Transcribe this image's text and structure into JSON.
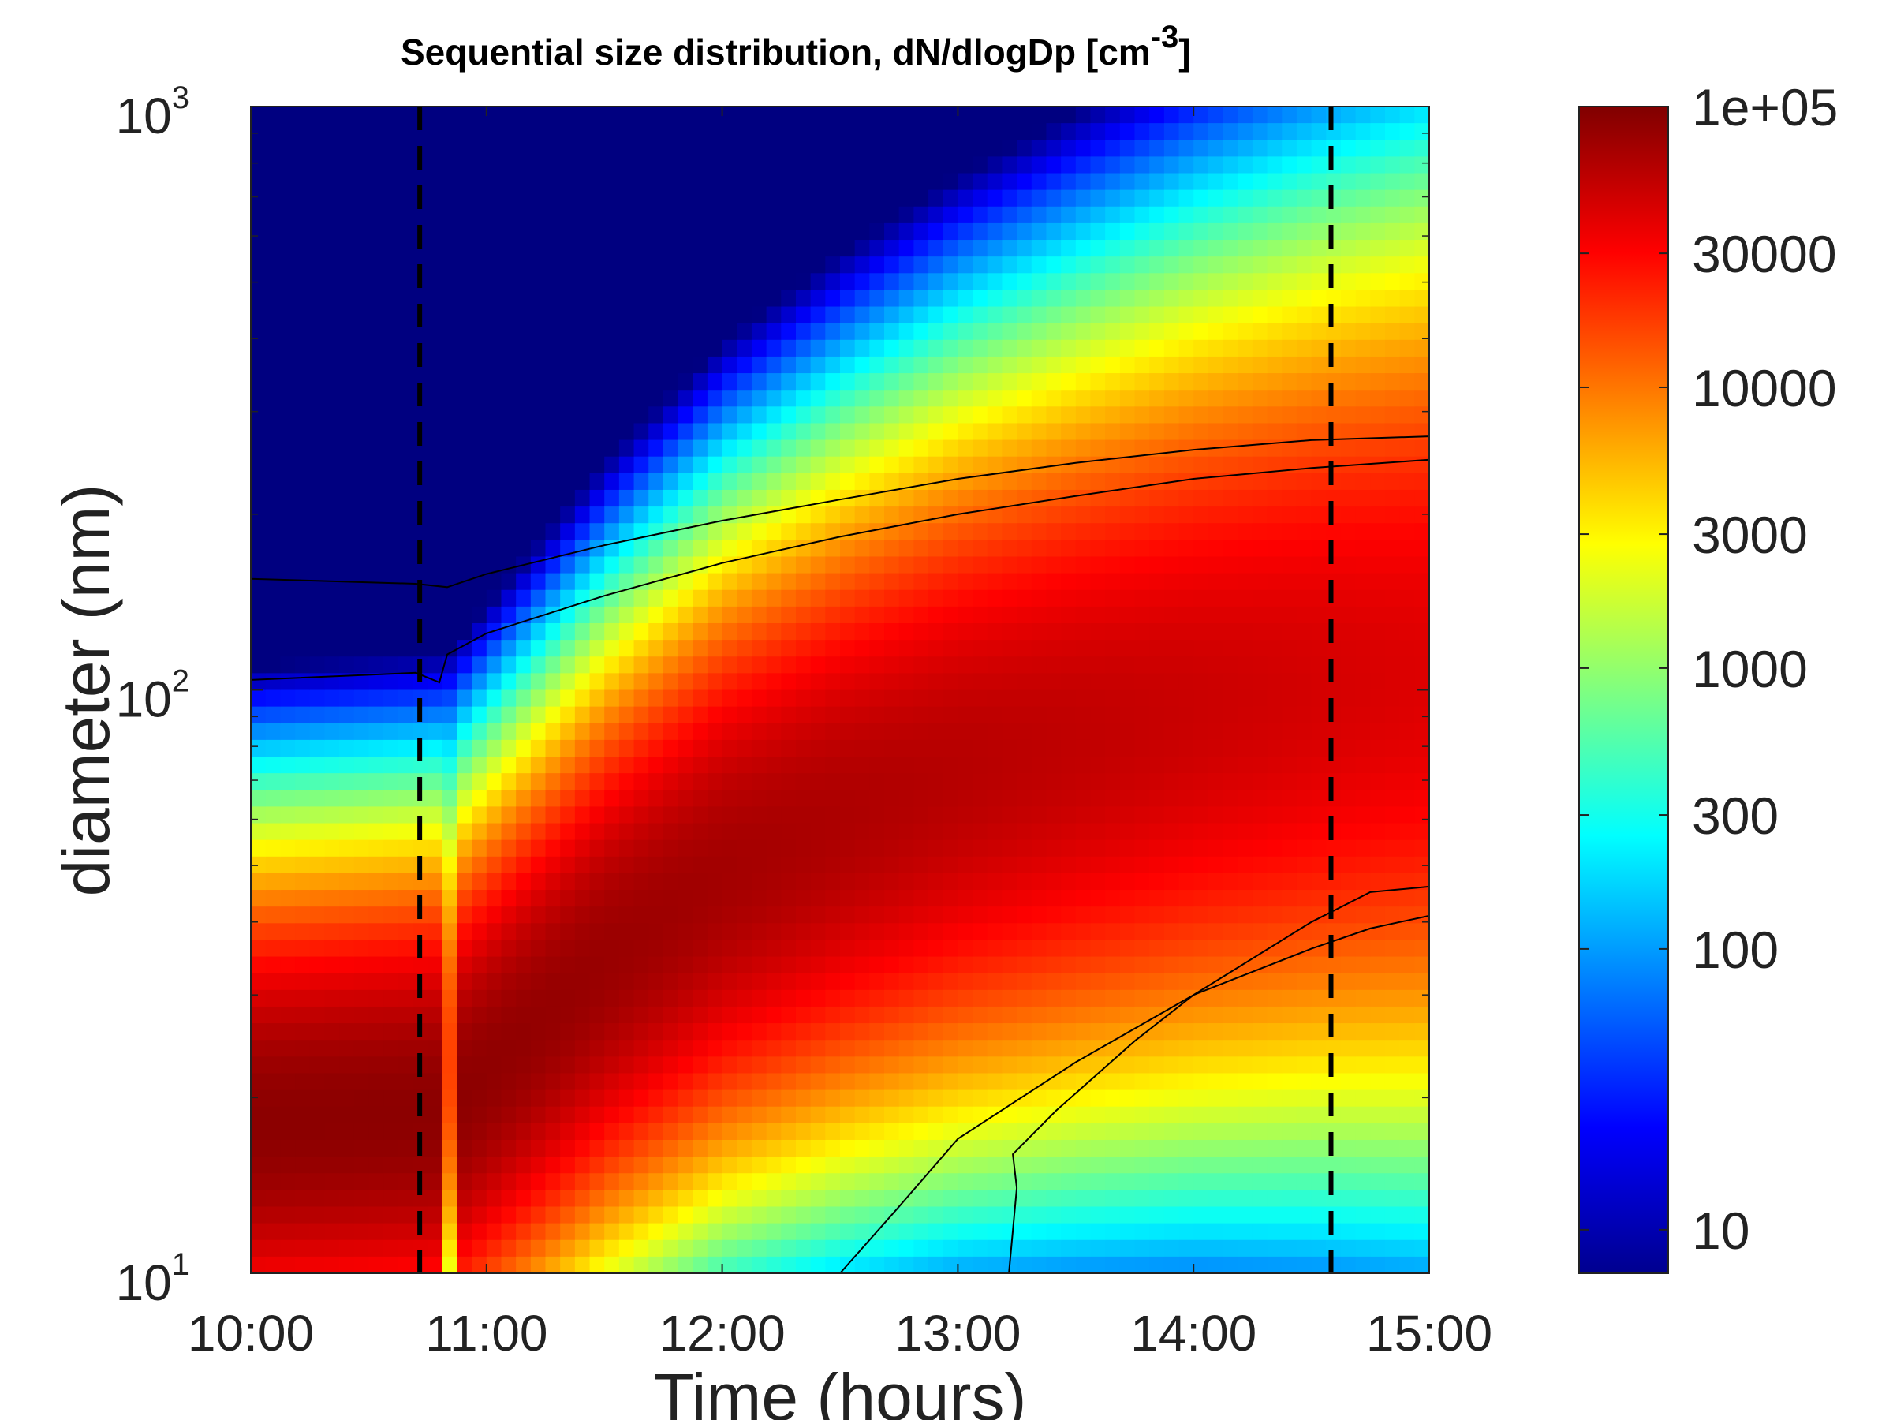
{
  "chart_data": {
    "type": "heatmap",
    "title": "Sequential size distribution, dN/dlogDp [cm",
    "title_superscript": "-3",
    "title_suffix": "]",
    "xlabel": "Time (hours)",
    "ylabel": "diameter (nm)",
    "x_ticks": [
      "10:00",
      "11:00",
      "12:00",
      "13:00",
      "14:00",
      "15:00"
    ],
    "x_range": [
      "10:00",
      "15:00"
    ],
    "y_scale": "log",
    "y_range": [
      10,
      1000
    ],
    "y_ticks": [
      {
        "base": "10",
        "exp": "1"
      },
      {
        "base": "10",
        "exp": "2"
      },
      {
        "base": "10",
        "exp": "3"
      }
    ],
    "colormap": "jet",
    "color_scale": "log",
    "color_range": [
      7,
      100000
    ],
    "colorbar_ticks": [
      {
        "value": 100000,
        "label": "1e+05"
      },
      {
        "value": 30000,
        "label": "30000"
      },
      {
        "value": 10000,
        "label": "10000"
      },
      {
        "value": 3000,
        "label": "3000"
      },
      {
        "value": 1000,
        "label": "1000"
      },
      {
        "value": 300,
        "label": "300"
      },
      {
        "value": 100,
        "label": "100"
      },
      {
        "value": 10,
        "label": "10"
      }
    ],
    "vertical_dashed_lines": [
      "10:43",
      "14:35"
    ],
    "mode_peak_diameter": [
      {
        "time": "10:00",
        "dp": 18
      },
      {
        "time": "10:50",
        "dp": 19
      },
      {
        "time": "11:00",
        "dp": 22
      },
      {
        "time": "11:30",
        "dp": 34
      },
      {
        "time": "12:00",
        "dp": 48
      },
      {
        "time": "12:30",
        "dp": 60
      },
      {
        "time": "13:00",
        "dp": 72
      },
      {
        "time": "13:30",
        "dp": 82
      },
      {
        "time": "14:00",
        "dp": 92
      },
      {
        "time": "14:30",
        "dp": 100
      },
      {
        "time": "15:00",
        "dp": 106
      }
    ],
    "contours": [
      {
        "name": "upper-outer",
        "points": [
          [
            "10:00",
            155
          ],
          [
            "10:42",
            152
          ],
          [
            "10:50",
            150
          ],
          [
            "11:00",
            158
          ],
          [
            "11:30",
            177
          ],
          [
            "12:00",
            195
          ],
          [
            "12:30",
            212
          ],
          [
            "13:00",
            230
          ],
          [
            "13:30",
            245
          ],
          [
            "14:00",
            258
          ],
          [
            "14:30",
            268
          ],
          [
            "15:00",
            272
          ]
        ]
      },
      {
        "name": "upper-inner",
        "points": [
          [
            "10:00",
            104
          ],
          [
            "10:42",
            107
          ],
          [
            "10:48",
            103
          ],
          [
            "10:50",
            115
          ],
          [
            "11:00",
            125
          ],
          [
            "11:30",
            145
          ],
          [
            "12:00",
            165
          ],
          [
            "12:30",
            183
          ],
          [
            "13:00",
            200
          ],
          [
            "13:30",
            215
          ],
          [
            "14:00",
            230
          ],
          [
            "14:30",
            240
          ],
          [
            "15:00",
            248
          ]
        ]
      },
      {
        "name": "lower-outer",
        "points": [
          [
            "12:30",
            10
          ],
          [
            "12:45",
            13
          ],
          [
            "13:00",
            17
          ],
          [
            "13:30",
            23
          ],
          [
            "14:00",
            30
          ],
          [
            "14:30",
            40
          ],
          [
            "14:45",
            45
          ],
          [
            "15:00",
            46
          ]
        ]
      },
      {
        "name": "lower-inner",
        "points": [
          [
            "13:13",
            10
          ],
          [
            "13:15",
            14
          ],
          [
            "13:14",
            16
          ],
          [
            "13:25",
            19
          ],
          [
            "13:45",
            25
          ],
          [
            "14:00",
            30
          ],
          [
            "14:30",
            36
          ],
          [
            "14:45",
            39
          ],
          [
            "15:00",
            41
          ]
        ]
      }
    ]
  }
}
